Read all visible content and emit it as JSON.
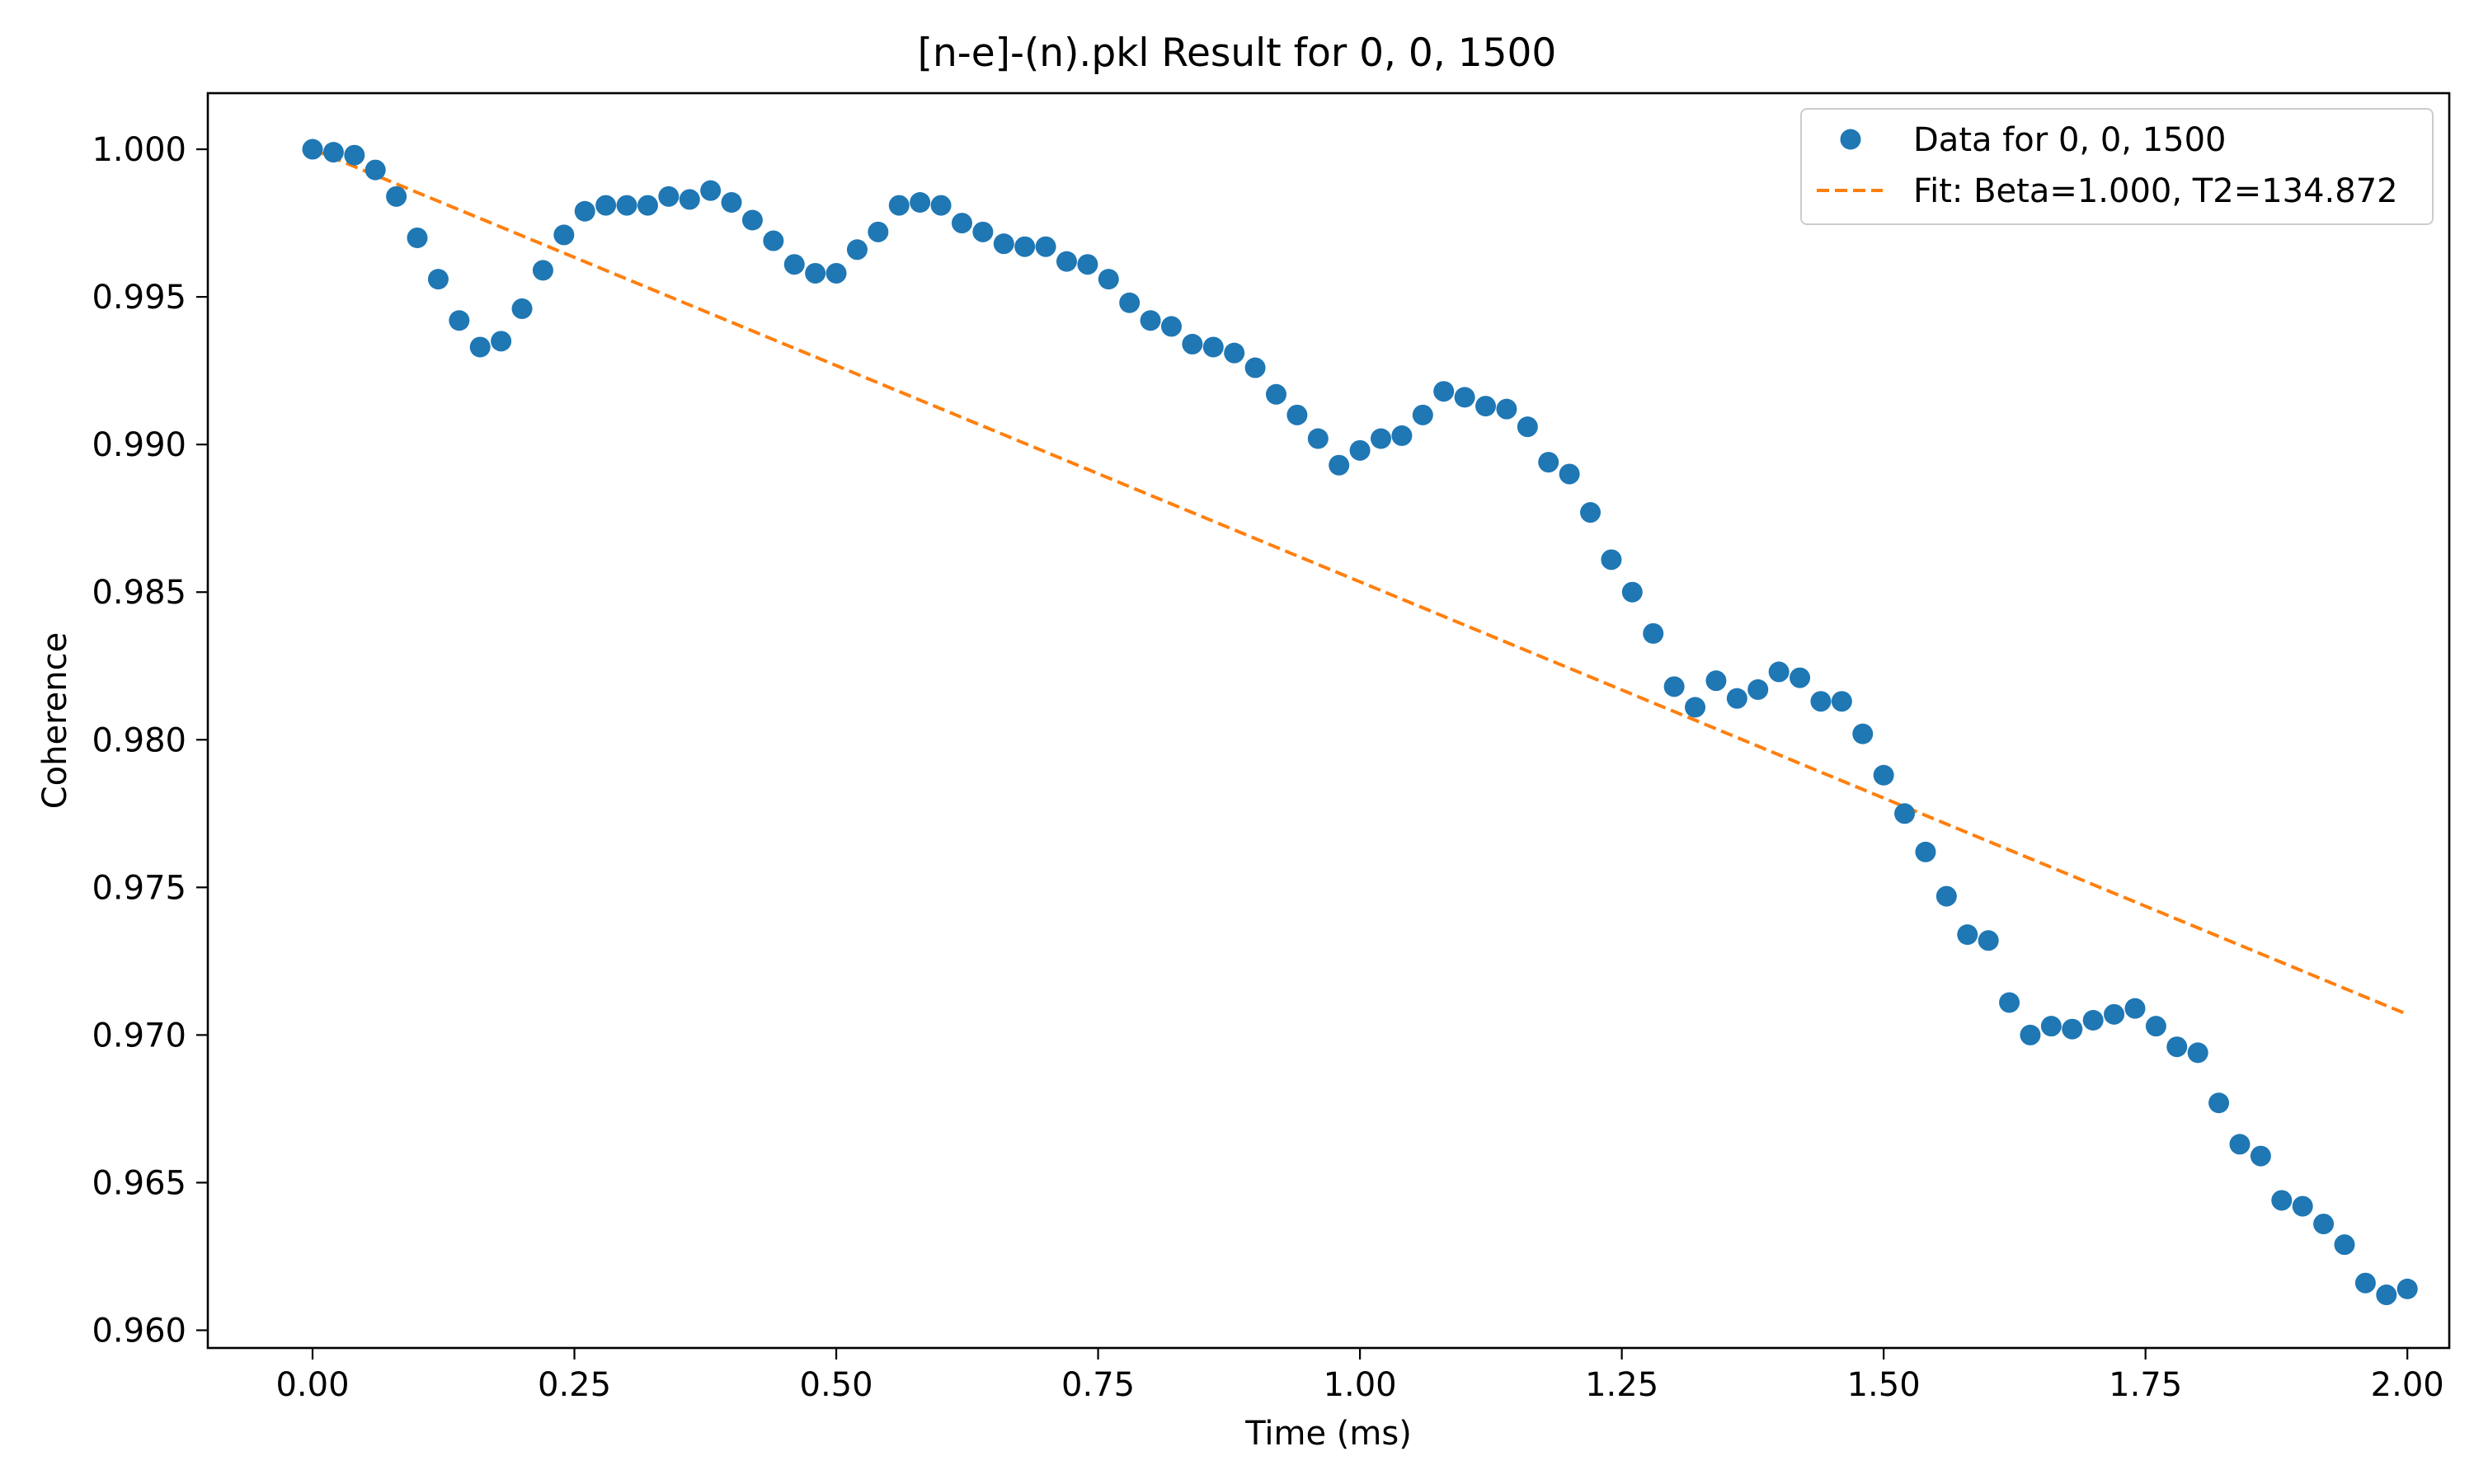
{
  "chart_data": {
    "type": "scatter",
    "title": "[n-e]-(n).pkl Result for 0, 0, 1500",
    "xlabel": "Time (ms)",
    "ylabel": "Coherence",
    "xlim": [
      -0.1,
      2.04
    ],
    "ylim": [
      0.9594,
      1.0019
    ],
    "x_ticks": [
      0.0,
      0.25,
      0.5,
      0.75,
      1.0,
      1.25,
      1.5,
      1.75,
      2.0
    ],
    "x_tick_labels": [
      "0.00",
      "0.25",
      "0.50",
      "0.75",
      "1.00",
      "1.25",
      "1.50",
      "1.75",
      "2.00"
    ],
    "y_ticks": [
      0.96,
      0.965,
      0.97,
      0.975,
      0.98,
      0.985,
      0.99,
      0.995,
      1.0
    ],
    "y_tick_labels": [
      "0.960",
      "0.965",
      "0.970",
      "0.975",
      "0.980",
      "0.985",
      "0.990",
      "0.995",
      "1.000"
    ],
    "grid": false,
    "legend_position": "top-right",
    "series": [
      {
        "name": "Data for 0, 0, 1500",
        "kind": "scatter",
        "color": "#1f77b4",
        "x": [
          0.0,
          0.02,
          0.04,
          0.06,
          0.08,
          0.1,
          0.12,
          0.14,
          0.16,
          0.18,
          0.2,
          0.22,
          0.24,
          0.26,
          0.28,
          0.3,
          0.32,
          0.34,
          0.36,
          0.38,
          0.4,
          0.42,
          0.44,
          0.46,
          0.48,
          0.5,
          0.52,
          0.54,
          0.56,
          0.58,
          0.6,
          0.62,
          0.64,
          0.66,
          0.68,
          0.7,
          0.72,
          0.74,
          0.76,
          0.78,
          0.8,
          0.82,
          0.84,
          0.86,
          0.88,
          0.9,
          0.92,
          0.94,
          0.96,
          0.98,
          1.0,
          1.02,
          1.04,
          1.06,
          1.08,
          1.1,
          1.12,
          1.14,
          1.16,
          1.18,
          1.2,
          1.22,
          1.24,
          1.26,
          1.28,
          1.3,
          1.32,
          1.34,
          1.36,
          1.38,
          1.4,
          1.42,
          1.44,
          1.46,
          1.48,
          1.5,
          1.52,
          1.54,
          1.56,
          1.58,
          1.6,
          1.62,
          1.64,
          1.66,
          1.68,
          1.7,
          1.72,
          1.74,
          1.76,
          1.78,
          1.8,
          1.82,
          1.84,
          1.86,
          1.88,
          1.9,
          1.92,
          1.94,
          1.96,
          1.98,
          2.0
        ],
        "y": [
          1.0,
          0.9999,
          0.9998,
          0.9993,
          0.9984,
          0.997,
          0.9956,
          0.9942,
          0.9933,
          0.9935,
          0.9946,
          0.9959,
          0.9971,
          0.9979,
          0.9981,
          0.9981,
          0.9981,
          0.9984,
          0.9983,
          0.9986,
          0.9982,
          0.9976,
          0.9969,
          0.9961,
          0.9958,
          0.9958,
          0.9966,
          0.9972,
          0.9981,
          0.9982,
          0.9981,
          0.9975,
          0.9972,
          0.9968,
          0.9967,
          0.9967,
          0.9962,
          0.9961,
          0.9956,
          0.9948,
          0.9942,
          0.994,
          0.9934,
          0.9933,
          0.9931,
          0.9926,
          0.9917,
          0.991,
          0.9902,
          0.9893,
          0.9898,
          0.9902,
          0.9903,
          0.991,
          0.9918,
          0.9916,
          0.9913,
          0.9912,
          0.9906,
          0.9894,
          0.989,
          0.9877,
          0.9861,
          0.985,
          0.9836,
          0.9818,
          0.9811,
          0.982,
          0.9814,
          0.9817,
          0.9823,
          0.9821,
          0.9813,
          0.9813,
          0.9802,
          0.9788,
          0.9775,
          0.9762,
          0.9747,
          0.9734,
          0.9732,
          0.9711,
          0.97,
          0.9703,
          0.9702,
          0.9705,
          0.9707,
          0.9709,
          0.9703,
          0.9696,
          0.9694,
          0.9677,
          0.9663,
          0.9659,
          0.9644,
          0.9642,
          0.9636,
          0.9629,
          0.9616,
          0.9612,
          0.9614
        ]
      },
      {
        "name": "Fit: Beta=1.000, T2=134.872",
        "kind": "line",
        "style": "dashed",
        "color": "#ff7f0e",
        "x": [
          0.0,
          2.0
        ],
        "y": [
          1.0,
          0.9707
        ]
      }
    ]
  }
}
